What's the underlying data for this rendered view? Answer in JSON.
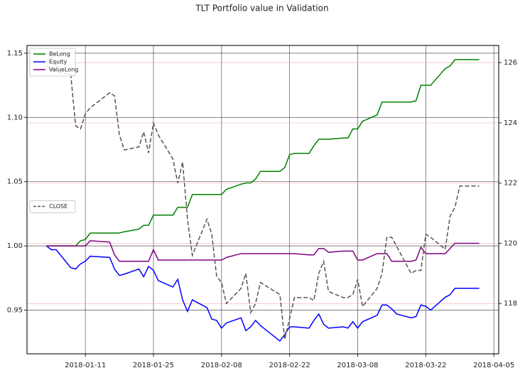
{
  "chart_data": {
    "type": "line",
    "title": "TLT Portfolio value in Validation",
    "x": [
      "2018-01-03",
      "2018-01-04",
      "2018-01-05",
      "2018-01-08",
      "2018-01-09",
      "2018-01-10",
      "2018-01-11",
      "2018-01-12",
      "2018-01-16",
      "2018-01-17",
      "2018-01-18",
      "2018-01-19",
      "2018-01-22",
      "2018-01-23",
      "2018-01-24",
      "2018-01-25",
      "2018-01-26",
      "2018-01-29",
      "2018-01-30",
      "2018-01-31",
      "2018-02-01",
      "2018-02-02",
      "2018-02-05",
      "2018-02-06",
      "2018-02-07",
      "2018-02-08",
      "2018-02-09",
      "2018-02-12",
      "2018-02-13",
      "2018-02-14",
      "2018-02-15",
      "2018-02-16",
      "2018-02-20",
      "2018-02-21",
      "2018-02-22",
      "2018-02-23",
      "2018-02-26",
      "2018-02-27",
      "2018-02-28",
      "2018-03-01",
      "2018-03-02",
      "2018-03-05",
      "2018-03-06",
      "2018-03-07",
      "2018-03-08",
      "2018-03-09",
      "2018-03-12",
      "2018-03-13",
      "2018-03-14",
      "2018-03-15",
      "2018-03-16",
      "2018-03-19",
      "2018-03-20",
      "2018-03-21",
      "2018-03-22",
      "2018-03-23",
      "2018-03-26",
      "2018-03-27",
      "2018-03-28",
      "2018-03-29",
      "2018-04-02"
    ],
    "series": [
      {
        "name": "BeLong",
        "color": "#008000",
        "values": [
          1.0,
          1.0,
          1.0,
          1.0,
          1.0,
          1.004,
          1.005,
          1.01,
          1.01,
          1.01,
          1.01,
          1.011,
          1.013,
          1.016,
          1.016,
          1.024,
          1.024,
          1.024,
          1.03,
          1.03,
          1.03,
          1.04,
          1.04,
          1.04,
          1.04,
          1.04,
          1.044,
          1.048,
          1.049,
          1.049,
          1.052,
          1.058,
          1.058,
          1.061,
          1.071,
          1.072,
          1.072,
          1.078,
          1.083,
          1.083,
          1.083,
          1.084,
          1.084,
          1.091,
          1.091,
          1.097,
          1.102,
          1.112,
          1.112,
          1.112,
          1.112,
          1.112,
          1.113,
          1.125,
          1.125,
          1.125,
          1.138,
          1.14,
          1.145,
          1.145,
          1.145
        ]
      },
      {
        "name": "Equity",
        "color": "#0000ff",
        "values": [
          1.0,
          0.997,
          0.997,
          0.983,
          0.982,
          0.986,
          0.988,
          0.992,
          0.991,
          0.982,
          0.977,
          0.978,
          0.982,
          0.976,
          0.984,
          0.981,
          0.973,
          0.968,
          0.974,
          0.958,
          0.949,
          0.958,
          0.952,
          0.943,
          0.942,
          0.936,
          0.94,
          0.944,
          0.934,
          0.937,
          0.942,
          0.938,
          0.926,
          0.931,
          0.937,
          0.937,
          0.936,
          0.942,
          0.947,
          0.939,
          0.936,
          0.937,
          0.936,
          0.941,
          0.936,
          0.941,
          0.946,
          0.954,
          0.954,
          0.951,
          0.947,
          0.944,
          0.945,
          0.954,
          0.953,
          0.95,
          0.96,
          0.962,
          0.967,
          0.967,
          0.967
        ]
      },
      {
        "name": "ValueLong",
        "color": "#800080",
        "values": [
          1.0,
          1.0,
          1.0,
          1.0,
          1.0,
          1.0,
          1.0,
          1.004,
          1.003,
          0.993,
          0.988,
          0.988,
          0.988,
          0.988,
          0.988,
          0.997,
          0.989,
          0.989,
          0.989,
          0.989,
          0.989,
          0.989,
          0.989,
          0.989,
          0.989,
          0.989,
          0.991,
          0.994,
          0.994,
          0.994,
          0.994,
          0.994,
          0.994,
          0.994,
          0.994,
          0.994,
          0.993,
          0.993,
          0.998,
          0.998,
          0.995,
          0.996,
          0.996,
          0.996,
          0.989,
          0.989,
          0.994,
          0.994,
          0.994,
          0.988,
          0.988,
          0.988,
          0.989,
          0.999,
          0.994,
          0.994,
          0.994,
          0.998,
          1.002,
          1.002,
          1.002
        ]
      },
      {
        "name": "CLOSE",
        "color": "#555555",
        "linestyle": "dashed",
        "axis": "y2",
        "values": [
          125.9,
          125.8,
          125.7,
          125.6,
          123.9,
          123.8,
          124.3,
          124.5,
          125.0,
          124.9,
          123.6,
          123.1,
          123.2,
          123.7,
          123.0,
          124.0,
          123.6,
          122.8,
          122.0,
          122.7,
          120.8,
          119.6,
          120.8,
          120.3,
          118.9,
          118.7,
          118.0,
          118.5,
          119.0,
          117.7,
          118.0,
          118.7,
          118.3,
          116.8,
          117.5,
          118.2,
          118.2,
          118.1,
          119.0,
          119.4,
          118.4,
          118.2,
          118.2,
          118.3,
          118.8,
          117.9,
          118.5,
          119.0,
          120.2,
          120.2,
          119.9,
          119.0,
          119.1,
          119.1,
          120.3,
          120.2,
          119.8,
          120.9,
          121.2,
          121.9,
          121.9
        ]
      }
    ],
    "xlim": [
      "2017-12-30",
      "2018-04-06"
    ],
    "xticks": [
      "2018-01-11",
      "2018-01-25",
      "2018-02-08",
      "2018-02-22",
      "2018-03-08",
      "2018-03-22",
      "2018-04-05"
    ],
    "ylim": [
      0.916,
      1.156
    ],
    "yticks": [
      0.95,
      {
        "value": 1.0,
        "label": "1.00"
      },
      1.05,
      {
        "value": 1.1,
        "label": "1.10"
      },
      1.15
    ],
    "y2lim": [
      116.33,
      126.57
    ],
    "y2ticks": [
      118,
      120,
      122,
      124,
      126
    ],
    "grid": true,
    "legend": "upper left",
    "y2_legend": "center left"
  }
}
